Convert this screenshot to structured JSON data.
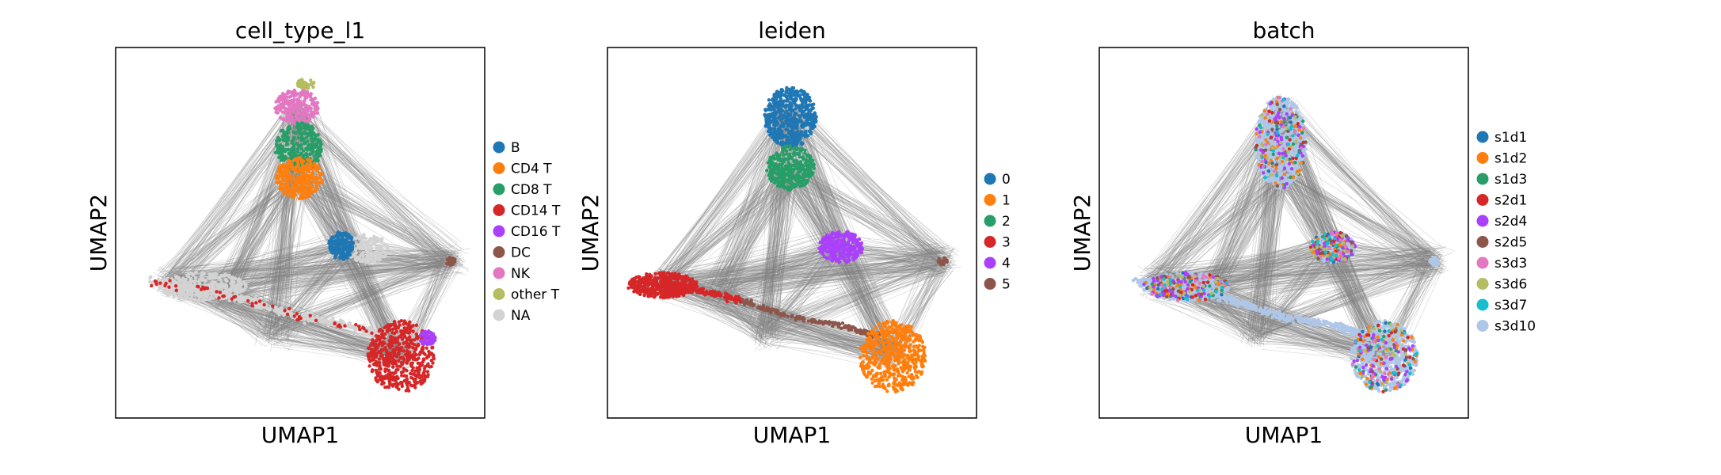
{
  "chart_data": [
    {
      "type": "scatter",
      "title": "cell_type_l1",
      "xlabel": "UMAP1",
      "ylabel": "UMAP2",
      "grid": false,
      "axis_ticks": false,
      "legend_position": "right",
      "legend": [
        {
          "label": "B",
          "color": "#1f77b4"
        },
        {
          "label": "CD4 T",
          "color": "#ff7f0e"
        },
        {
          "label": "CD8 T",
          "color": "#279e68"
        },
        {
          "label": "CD14 T",
          "color": "#d62728"
        },
        {
          "label": "CD16 T",
          "color": "#aa40fc"
        },
        {
          "label": "DC",
          "color": "#8c564b"
        },
        {
          "label": "NK",
          "color": "#e377c2"
        },
        {
          "label": "other T",
          "color": "#b5bd61"
        },
        {
          "label": "NA",
          "color": "#d3d3d3"
        }
      ]
    },
    {
      "type": "scatter",
      "title": "leiden",
      "xlabel": "UMAP1",
      "ylabel": "UMAP2",
      "grid": false,
      "axis_ticks": false,
      "legend_position": "right",
      "legend": [
        {
          "label": "0",
          "color": "#1f77b4"
        },
        {
          "label": "1",
          "color": "#ff7f0e"
        },
        {
          "label": "2",
          "color": "#279e68"
        },
        {
          "label": "3",
          "color": "#d62728"
        },
        {
          "label": "4",
          "color": "#aa40fc"
        },
        {
          "label": "5",
          "color": "#8c564b"
        }
      ]
    },
    {
      "type": "scatter",
      "title": "batch",
      "xlabel": "UMAP1",
      "ylabel": "UMAP2",
      "grid": false,
      "axis_ticks": false,
      "legend_position": "right",
      "legend": [
        {
          "label": "s1d1",
          "color": "#1f77b4"
        },
        {
          "label": "s1d2",
          "color": "#ff7f0e"
        },
        {
          "label": "s1d3",
          "color": "#279e68"
        },
        {
          "label": "s2d1",
          "color": "#d62728"
        },
        {
          "label": "s2d4",
          "color": "#aa40fc"
        },
        {
          "label": "s2d5",
          "color": "#8c564b"
        },
        {
          "label": "s3d3",
          "color": "#e377c2"
        },
        {
          "label": "s3d6",
          "color": "#b5bd61"
        },
        {
          "label": "s3d7",
          "color": "#17becf"
        },
        {
          "label": "s3d10",
          "color": "#aec7e8"
        }
      ]
    }
  ],
  "colors": {
    "edges": "#808080",
    "frame": "#000000",
    "background": "#ffffff"
  }
}
